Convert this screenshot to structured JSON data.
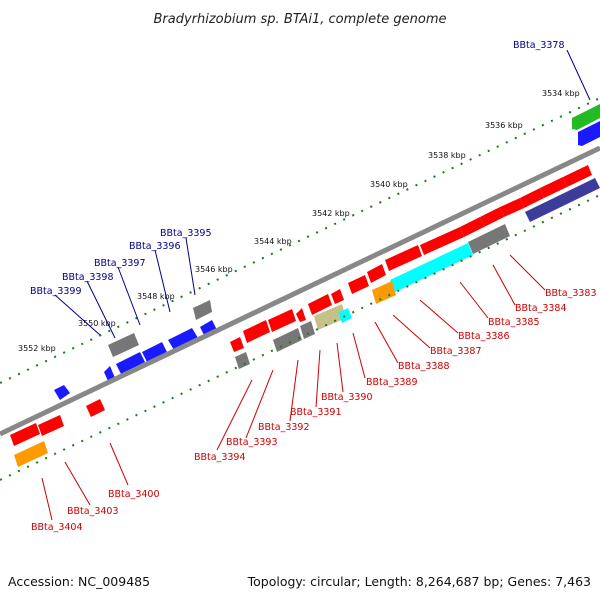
{
  "title": "Bradyrhizobium sp. BTAi1, complete genome",
  "footer": {
    "accession": "Accession: NC_009485",
    "summary": "Topology: circular; Length: 8,264,687 bp; Genes: 7,463"
  },
  "kbp_labels": [
    "3534 kbp",
    "3536 kbp",
    "3538 kbp",
    "3540 kbp",
    "3542 kbp",
    "3544 kbp",
    "3546 kbp",
    "3548 kbp",
    "3550 kbp",
    "3552 kbp"
  ],
  "colors": {
    "forward_label": "#00008b",
    "reverse_label": "#cc0000",
    "backbone": "#888888",
    "tick": "#1a7a1a",
    "red": "#ff0000",
    "blue": "#1a1aff",
    "gray": "#777777",
    "green": "#22bb22",
    "navy": "#3c3c9c",
    "cyan": "#00ffff",
    "orange": "#ff9900",
    "khaki": "#c8c08a"
  },
  "gene_labels_forward": [
    "BBta_3378",
    "BBta_3395",
    "BBta_3396",
    "BBta_3397",
    "BBta_3398",
    "BBta_3399"
  ],
  "gene_labels_reverse": [
    "BBta_3383",
    "BBta_3384",
    "BBta_3385",
    "BBta_3386",
    "BBta_3387",
    "BBta_3388",
    "BBta_3389",
    "BBta_3390",
    "BBta_3391",
    "BBta_3392",
    "BBta_3393",
    "BBta_3394",
    "BBta_3400",
    "BBta_3403",
    "BBta_3404"
  ]
}
